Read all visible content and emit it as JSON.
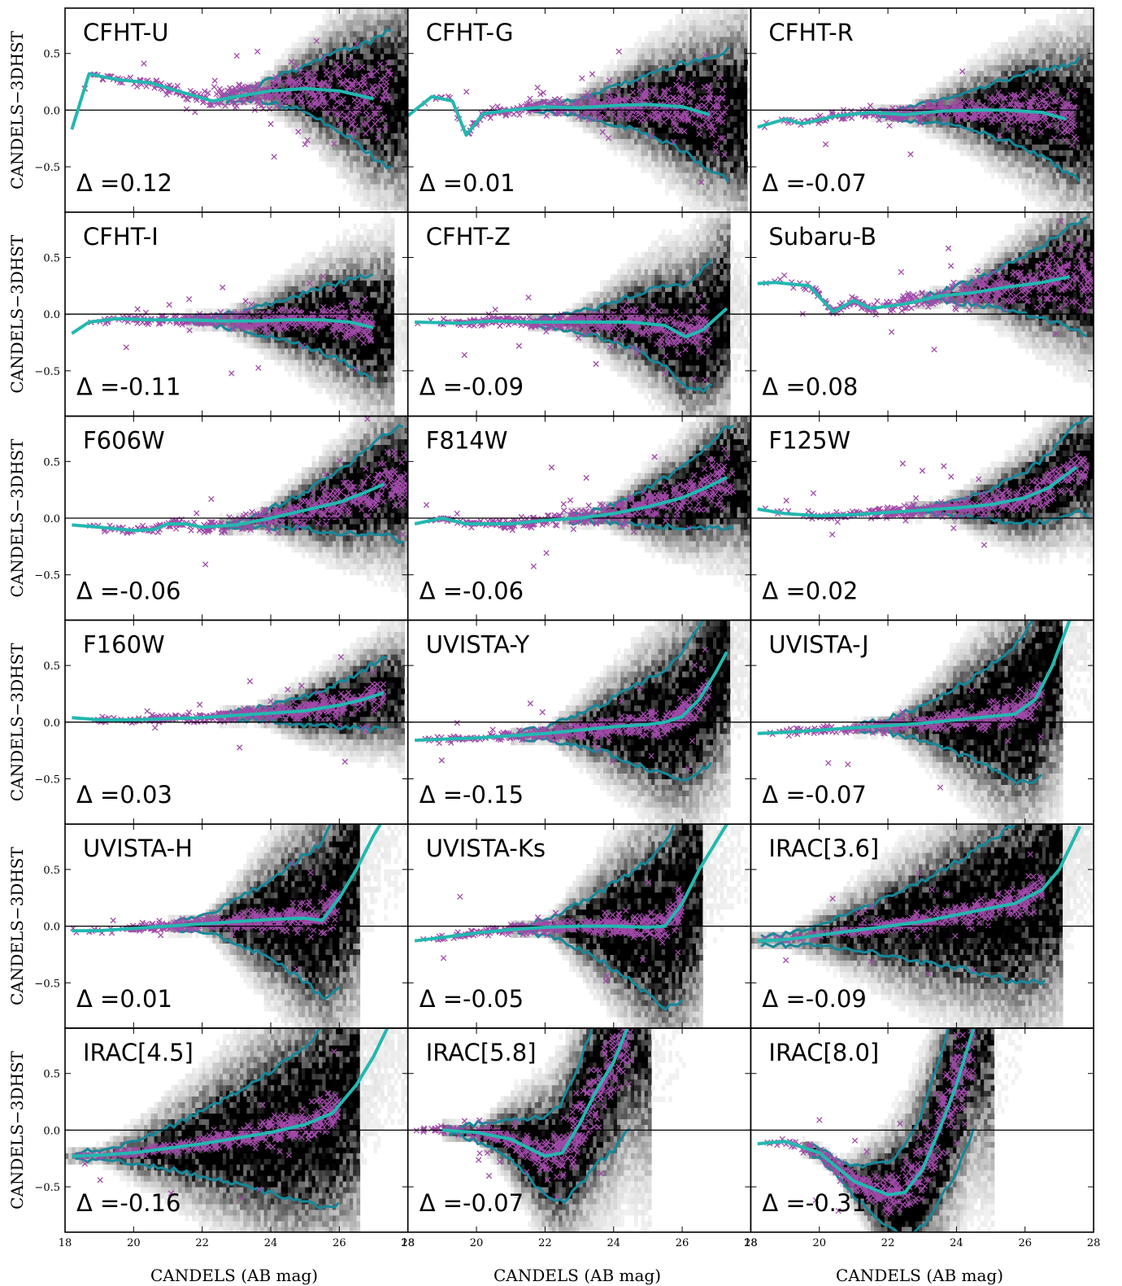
{
  "figure": {
    "xlabel": "CANDELS (AB mag)",
    "ylabel": "CANDELS−3DHST",
    "delta_symbol": "Δ ="
  },
  "chart_data": {
    "type": "scatter",
    "layout": "6x3 panels",
    "xlim": [
      18,
      28
    ],
    "ylim": [
      -0.9,
      0.9
    ],
    "xticks": [
      18,
      20,
      22,
      24,
      26,
      28
    ],
    "yticks": [
      -0.5,
      0.0,
      0.5
    ],
    "xtick_labels": [
      "18",
      "20",
      "22",
      "24",
      "26",
      "28"
    ],
    "ytick_labels": [
      "−0.5",
      "0.0",
      "0.5"
    ],
    "reference_line_y": 0.0,
    "colors": {
      "median_line": "#22b8b0",
      "contour": "#15889a",
      "points": "#a04aa8",
      "density": "#000000",
      "frame": "#000000"
    },
    "panels": [
      {
        "name": "CFHT-U",
        "delta": "0.12",
        "median": [
          [
            18.2,
            -0.17
          ],
          [
            18.7,
            0.32
          ],
          [
            19.5,
            0.27
          ],
          [
            20.5,
            0.24
          ],
          [
            21.5,
            0.15
          ],
          [
            22.3,
            0.08
          ],
          [
            23.0,
            0.12
          ],
          [
            24.0,
            0.17
          ],
          [
            25.0,
            0.19
          ],
          [
            26.0,
            0.17
          ],
          [
            27.0,
            0.1
          ]
        ],
        "density_span": [
          23.5,
          27.5
        ],
        "density_center": [
          26.3,
          0.15
        ],
        "env_width": 0.6,
        "spread": 0.25
      },
      {
        "name": "CFHT-G",
        "delta": "0.01",
        "median": [
          [
            18.0,
            -0.05
          ],
          [
            18.7,
            0.12
          ],
          [
            19.3,
            0.08
          ],
          [
            19.7,
            -0.22
          ],
          [
            20.2,
            -0.03
          ],
          [
            21.0,
            0.0
          ],
          [
            22.0,
            0.03
          ],
          [
            23.0,
            0.02
          ],
          [
            24.0,
            0.04
          ],
          [
            25.0,
            0.05
          ],
          [
            26.0,
            0.03
          ],
          [
            26.8,
            -0.04
          ]
        ],
        "density_span": [
          22.5,
          27.3
        ],
        "density_center": [
          26.2,
          0.0
        ],
        "env_width": 0.55,
        "spread": 0.2
      },
      {
        "name": "CFHT-R",
        "delta": "-0.07",
        "median": [
          [
            18.2,
            -0.15
          ],
          [
            19.0,
            -0.08
          ],
          [
            19.5,
            -0.12
          ],
          [
            20.5,
            -0.05
          ],
          [
            21.5,
            -0.02
          ],
          [
            22.5,
            -0.04
          ],
          [
            23.5,
            -0.01
          ],
          [
            24.5,
            0.0
          ],
          [
            25.5,
            0.0
          ],
          [
            26.5,
            -0.02
          ],
          [
            27.2,
            -0.08
          ]
        ],
        "density_span": [
          22.5,
          27.5
        ],
        "density_center": [
          26.3,
          -0.02
        ],
        "env_width": 0.5,
        "spread": 0.15
      },
      {
        "name": "CFHT-I",
        "delta": "-0.11",
        "median": [
          [
            18.2,
            -0.17
          ],
          [
            18.7,
            -0.07
          ],
          [
            19.5,
            -0.04
          ],
          [
            20.5,
            -0.05
          ],
          [
            21.5,
            -0.05
          ],
          [
            22.5,
            -0.06
          ],
          [
            23.5,
            -0.06
          ],
          [
            24.5,
            -0.05
          ],
          [
            25.5,
            -0.05
          ],
          [
            26.3,
            -0.07
          ],
          [
            27.0,
            -0.12
          ]
        ],
        "density_span": [
          22.5,
          27.0
        ],
        "density_center": [
          25.9,
          -0.05
        ],
        "env_width": 0.45,
        "spread": 0.12
      },
      {
        "name": "CFHT-Z",
        "delta": "-0.09",
        "median": [
          [
            18.2,
            -0.07
          ],
          [
            19.5,
            -0.08
          ],
          [
            20.5,
            -0.06
          ],
          [
            21.5,
            -0.07
          ],
          [
            22.5,
            -0.07
          ],
          [
            23.5,
            -0.07
          ],
          [
            24.5,
            -0.07
          ],
          [
            25.5,
            -0.1
          ],
          [
            26.1,
            -0.2
          ],
          [
            26.6,
            -0.14
          ],
          [
            27.3,
            0.05
          ]
        ],
        "density_span": [
          22.5,
          26.8
        ],
        "density_center": [
          25.9,
          0.0
        ],
        "env_width": 0.55,
        "spread": 0.12
      },
      {
        "name": "Subaru-B",
        "delta": "0.08",
        "median": [
          [
            18.2,
            0.27
          ],
          [
            18.7,
            0.28
          ],
          [
            19.7,
            0.25
          ],
          [
            20.4,
            0.02
          ],
          [
            21.0,
            0.12
          ],
          [
            21.5,
            0.05
          ],
          [
            22.5,
            0.09
          ],
          [
            23.5,
            0.16
          ],
          [
            24.5,
            0.19
          ],
          [
            25.5,
            0.24
          ],
          [
            26.5,
            0.28
          ],
          [
            27.3,
            0.33
          ]
        ],
        "density_span": [
          23.8,
          28.0
        ],
        "density_center": [
          26.8,
          0.3
        ],
        "env_width": 0.5,
        "spread": 0.2
      },
      {
        "name": "F606W",
        "delta": "-0.06",
        "median": [
          [
            18.2,
            -0.06
          ],
          [
            19.0,
            -0.08
          ],
          [
            20.0,
            -0.11
          ],
          [
            20.6,
            -0.1
          ],
          [
            21.0,
            -0.05
          ],
          [
            21.5,
            -0.05
          ],
          [
            22.0,
            -0.08
          ],
          [
            23.0,
            -0.06
          ],
          [
            24.0,
            0.0
          ],
          [
            25.0,
            0.07
          ],
          [
            26.0,
            0.14
          ],
          [
            26.7,
            0.22
          ],
          [
            27.3,
            0.3
          ]
        ],
        "density_span": [
          23.5,
          28.0
        ],
        "density_center": [
          26.3,
          0.15
        ],
        "env_width": 0.5,
        "spread": 0.15
      },
      {
        "name": "F814W",
        "delta": "-0.06",
        "median": [
          [
            18.2,
            -0.05
          ],
          [
            19.0,
            0.0
          ],
          [
            19.7,
            -0.05
          ],
          [
            21.0,
            -0.05
          ],
          [
            22.0,
            -0.02
          ],
          [
            23.0,
            0.0
          ],
          [
            24.0,
            0.04
          ],
          [
            25.0,
            0.1
          ],
          [
            26.0,
            0.18
          ],
          [
            26.7,
            0.27
          ],
          [
            27.3,
            0.36
          ]
        ],
        "density_span": [
          23.5,
          27.5
        ],
        "density_center": [
          26.3,
          0.15
        ],
        "env_width": 0.45,
        "spread": 0.15
      },
      {
        "name": "F125W",
        "delta": "0.02",
        "median": [
          [
            18.2,
            0.08
          ],
          [
            19.0,
            0.04
          ],
          [
            20.0,
            0.02
          ],
          [
            21.0,
            0.03
          ],
          [
            22.0,
            0.05
          ],
          [
            23.0,
            0.07
          ],
          [
            24.0,
            0.09
          ],
          [
            25.0,
            0.12
          ],
          [
            26.0,
            0.18
          ],
          [
            26.7,
            0.27
          ],
          [
            27.5,
            0.45
          ]
        ],
        "density_span": [
          23.5,
          27.8
        ],
        "density_center": [
          26.2,
          0.15
        ],
        "env_width": 0.4,
        "spread": 0.1
      },
      {
        "name": "F160W",
        "delta": "0.03",
        "median": [
          [
            18.2,
            0.04
          ],
          [
            19.0,
            0.02
          ],
          [
            20.0,
            0.02
          ],
          [
            21.0,
            0.03
          ],
          [
            22.0,
            0.04
          ],
          [
            23.0,
            0.06
          ],
          [
            24.0,
            0.08
          ],
          [
            25.0,
            0.1
          ],
          [
            26.0,
            0.15
          ],
          [
            26.7,
            0.2
          ],
          [
            27.3,
            0.26
          ]
        ],
        "density_span": [
          23.5,
          27.3
        ],
        "density_center": [
          26.0,
          0.15
        ],
        "env_width": 0.3,
        "spread": 0.08
      },
      {
        "name": "UVISTA-Y",
        "delta": "-0.15",
        "median": [
          [
            18.2,
            -0.16
          ],
          [
            19.0,
            -0.15
          ],
          [
            20.0,
            -0.14
          ],
          [
            21.0,
            -0.12
          ],
          [
            22.0,
            -0.1
          ],
          [
            23.0,
            -0.07
          ],
          [
            24.0,
            -0.04
          ],
          [
            25.0,
            -0.02
          ],
          [
            25.5,
            0.0
          ],
          [
            26.0,
            0.05
          ],
          [
            26.5,
            0.2
          ],
          [
            27.0,
            0.45
          ],
          [
            27.3,
            0.62
          ]
        ],
        "density_span": [
          22.0,
          26.8
        ],
        "density_center": [
          25.5,
          0.0
        ],
        "env_width": 0.7,
        "spread": 0.1
      },
      {
        "name": "UVISTA-J",
        "delta": "-0.07",
        "median": [
          [
            18.2,
            -0.1
          ],
          [
            19.0,
            -0.09
          ],
          [
            20.0,
            -0.07
          ],
          [
            21.0,
            -0.05
          ],
          [
            22.0,
            -0.03
          ],
          [
            23.0,
            -0.01
          ],
          [
            24.0,
            0.02
          ],
          [
            25.0,
            0.05
          ],
          [
            25.7,
            0.07
          ],
          [
            26.3,
            0.2
          ],
          [
            26.8,
            0.5
          ],
          [
            27.3,
            0.9
          ]
        ],
        "density_span": [
          22.0,
          26.5
        ],
        "density_center": [
          25.3,
          0.0
        ],
        "env_width": 0.75,
        "spread": 0.1
      },
      {
        "name": "UVISTA-H",
        "delta": "0.01",
        "median": [
          [
            18.2,
            -0.04
          ],
          [
            19.0,
            -0.04
          ],
          [
            20.0,
            -0.02
          ],
          [
            21.0,
            0.0
          ],
          [
            22.0,
            0.02
          ],
          [
            23.0,
            0.04
          ],
          [
            24.0,
            0.06
          ],
          [
            25.0,
            0.07
          ],
          [
            25.5,
            0.05
          ],
          [
            26.0,
            0.25
          ],
          [
            26.5,
            0.5
          ],
          [
            27.0,
            0.8
          ],
          [
            27.2,
            0.9
          ]
        ],
        "density_span": [
          22.0,
          26.0
        ],
        "density_center": [
          24.8,
          0.0
        ],
        "env_width": 0.8,
        "spread": 0.1
      },
      {
        "name": "UVISTA-Ks",
        "delta": "-0.05",
        "median": [
          [
            18.2,
            -0.13
          ],
          [
            19.0,
            -0.1
          ],
          [
            20.0,
            -0.06
          ],
          [
            21.0,
            -0.03
          ],
          [
            22.0,
            -0.01
          ],
          [
            23.0,
            0.0
          ],
          [
            24.0,
            0.0
          ],
          [
            25.0,
            -0.01
          ],
          [
            25.5,
            0.0
          ],
          [
            26.0,
            0.2
          ],
          [
            26.5,
            0.5
          ],
          [
            27.0,
            0.75
          ],
          [
            27.3,
            0.9
          ]
        ],
        "density_span": [
          22.0,
          26.0
        ],
        "density_center": [
          24.8,
          0.0
        ],
        "env_width": 0.85,
        "spread": 0.1
      },
      {
        "name": "IRAC[3.6]",
        "delta": "-0.09",
        "median": [
          [
            18.2,
            -0.13
          ],
          [
            19.0,
            -0.12
          ],
          [
            20.0,
            -0.08
          ],
          [
            21.0,
            -0.04
          ],
          [
            22.0,
            0.0
          ],
          [
            23.0,
            0.04
          ],
          [
            24.0,
            0.1
          ],
          [
            25.0,
            0.16
          ],
          [
            25.7,
            0.2
          ],
          [
            26.5,
            0.32
          ],
          [
            27.0,
            0.5
          ],
          [
            27.6,
            0.88
          ]
        ],
        "density_span": [
          19.0,
          26.5
        ],
        "density_center": [
          24.5,
          0.0
        ],
        "env_width": 0.8,
        "spread": 0.1
      },
      {
        "name": "IRAC[4.5]",
        "delta": "-0.16",
        "median": [
          [
            18.2,
            -0.23
          ],
          [
            19.0,
            -0.22
          ],
          [
            20.0,
            -0.2
          ],
          [
            21.0,
            -0.16
          ],
          [
            22.0,
            -0.12
          ],
          [
            23.0,
            -0.07
          ],
          [
            24.0,
            -0.02
          ],
          [
            25.0,
            0.05
          ],
          [
            25.8,
            0.15
          ],
          [
            26.5,
            0.4
          ],
          [
            27.0,
            0.65
          ],
          [
            27.4,
            0.9
          ]
        ],
        "density_span": [
          19.0,
          26.0
        ],
        "density_center": [
          24.0,
          -0.1
        ],
        "env_width": 0.85,
        "spread": 0.12
      },
      {
        "name": "IRAC[5.8]",
        "delta": "-0.07",
        "median": [
          [
            19.0,
            0.0
          ],
          [
            20.0,
            -0.02
          ],
          [
            21.0,
            -0.08
          ],
          [
            22.0,
            -0.23
          ],
          [
            22.5,
            -0.2
          ],
          [
            23.0,
            0.05
          ],
          [
            23.5,
            0.35
          ],
          [
            24.0,
            0.6
          ],
          [
            24.4,
            0.9
          ]
        ],
        "density_span": [
          20.0,
          24.5
        ],
        "density_center": [
          22.3,
          0.0
        ],
        "env_width": 0.9,
        "spread": 0.3
      },
      {
        "name": "IRAC[8.0]",
        "delta": "-0.31",
        "median": [
          [
            18.2,
            -0.12
          ],
          [
            19.0,
            -0.1
          ],
          [
            20.0,
            -0.2
          ],
          [
            21.0,
            -0.45
          ],
          [
            22.0,
            -0.57
          ],
          [
            22.5,
            -0.55
          ],
          [
            23.0,
            -0.35
          ],
          [
            23.5,
            0.0
          ],
          [
            24.0,
            0.4
          ],
          [
            24.5,
            0.9
          ]
        ],
        "density_span": [
          20.5,
          24.5
        ],
        "density_center": [
          22.5,
          -0.25
        ],
        "env_width": 0.9,
        "spread": 0.3
      }
    ]
  }
}
